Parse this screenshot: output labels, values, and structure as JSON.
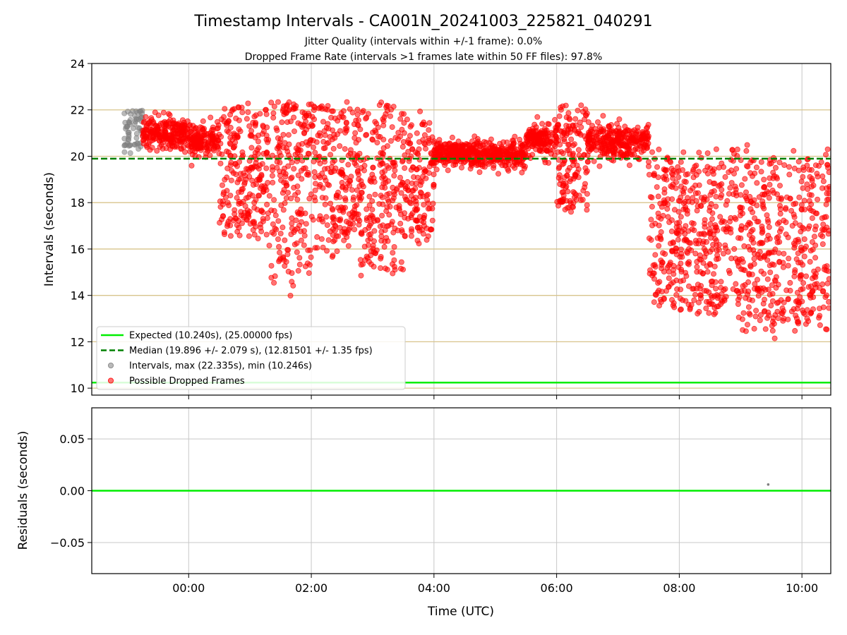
{
  "colors": {
    "expected": "#00ee00",
    "median": "#008000",
    "dropped": "#ff0000",
    "normal": "#808080",
    "hline": "#d8c48c",
    "grid": "#c8c8c8"
  },
  "chart_data": [
    {
      "type": "scatter",
      "title": "Timestamp Intervals - CA001N_20241003_225821_040291",
      "subtitle_lines": [
        "Jitter Quality (intervals within +/-1 frame): 0.0%",
        "Dropped Frame Rate (intervals >1 frames late within 50 FF files): 97.8%"
      ],
      "xlabel": "",
      "ylabel": "Intervals (seconds)",
      "x_unit": "hours since 00:00 UTC",
      "xlim": [
        -1.58,
        10.47
      ],
      "ylim": [
        9.7,
        24
      ],
      "yticks": [
        10,
        12,
        14,
        16,
        18,
        20,
        22,
        24
      ],
      "hlines": [
        10,
        12,
        14,
        16,
        18,
        20,
        22
      ],
      "xticks": [
        {
          "value": 0,
          "label": "00:00"
        },
        {
          "value": 2,
          "label": "02:00"
        },
        {
          "value": 4,
          "label": "04:00"
        },
        {
          "value": 6,
          "label": "06:00"
        },
        {
          "value": 8,
          "label": "08:00"
        },
        {
          "value": 10,
          "label": "10:00"
        }
      ],
      "expected_value": 10.24,
      "median_value": 19.896,
      "normal_series": {
        "name": "Intervals, max (22.335s), min (10.246s)",
        "x_range": [
          -1.05,
          -0.75
        ],
        "y_range": [
          20.1,
          22.0
        ]
      },
      "dropped_segments": [
        {
          "x": [
            -0.75,
            0.0
          ],
          "y_mean": 21.0,
          "y_spread": 0.7
        },
        {
          "x": [
            0.0,
            0.5
          ],
          "y_mean": 20.7,
          "y_spread": 0.7
        },
        {
          "x": [
            0.5,
            1.3
          ],
          "y_mean": 19.2,
          "y_spread": 2.8
        },
        {
          "x": [
            1.3,
            2.0
          ],
          "y_mean": 18.8,
          "y_spread": 4.0
        },
        {
          "x": [
            2.0,
            2.8
          ],
          "y_mean": 19.2,
          "y_spread": 3.0
        },
        {
          "x": [
            2.8,
            3.5
          ],
          "y_mean": 18.6,
          "y_spread": 3.6
        },
        {
          "x": [
            3.5,
            4.0
          ],
          "y_mean": 19.0,
          "y_spread": 2.6
        },
        {
          "x": [
            4.0,
            5.5
          ],
          "y_mean": 20.1,
          "y_spread": 0.6
        },
        {
          "x": [
            5.5,
            6.0
          ],
          "y_mean": 20.7,
          "y_spread": 0.7
        },
        {
          "x": [
            6.0,
            6.5
          ],
          "y_mean": 19.8,
          "y_spread": 2.2
        },
        {
          "x": [
            6.5,
            7.5
          ],
          "y_mean": 20.6,
          "y_spread": 0.8
        },
        {
          "x": [
            7.5,
            8.0
          ],
          "y_mean": 17.0,
          "y_spread": 3.2
        },
        {
          "x": [
            8.0,
            9.0
          ],
          "y_mean": 16.6,
          "y_spread": 3.4
        },
        {
          "x": [
            9.0,
            10.47
          ],
          "y_mean": 16.3,
          "y_spread": 3.6
        }
      ],
      "dropped_series_name": "Possible Dropped Frames",
      "legend": {
        "placement": "lower-left",
        "entries": [
          {
            "label": "Expected (10.240s), (25.00000 fps)",
            "kind": "solid-line"
          },
          {
            "label": "Median (19.896 +/- 2.079 s), (12.81501 +/- 1.35 fps)",
            "kind": "dashed-line"
          },
          {
            "label": "Intervals, max (22.335s), min (10.246s)",
            "kind": "gray-dot"
          },
          {
            "label": "Possible Dropped Frames",
            "kind": "red-dot"
          }
        ]
      }
    },
    {
      "type": "scatter",
      "title": "",
      "xlabel": "Time (UTC)",
      "ylabel": "Residuals (seconds)",
      "xlim": [
        -1.58,
        10.47
      ],
      "ylim": [
        -0.08,
        0.08
      ],
      "yticks": [
        {
          "value": 0.05,
          "label": "0.05"
        },
        {
          "value": 0.0,
          "label": "0.00"
        },
        {
          "value": -0.05,
          "label": "−0.05"
        }
      ],
      "xticks": [
        {
          "value": 0,
          "label": "00:00"
        },
        {
          "value": 2,
          "label": "02:00"
        },
        {
          "value": 4,
          "label": "04:00"
        },
        {
          "value": 6,
          "label": "06:00"
        },
        {
          "value": 8,
          "label": "08:00"
        },
        {
          "value": 10,
          "label": "10:00"
        }
      ],
      "zero_line": 0.0,
      "points": [
        {
          "x": 9.45,
          "y": 0.006
        }
      ]
    }
  ]
}
